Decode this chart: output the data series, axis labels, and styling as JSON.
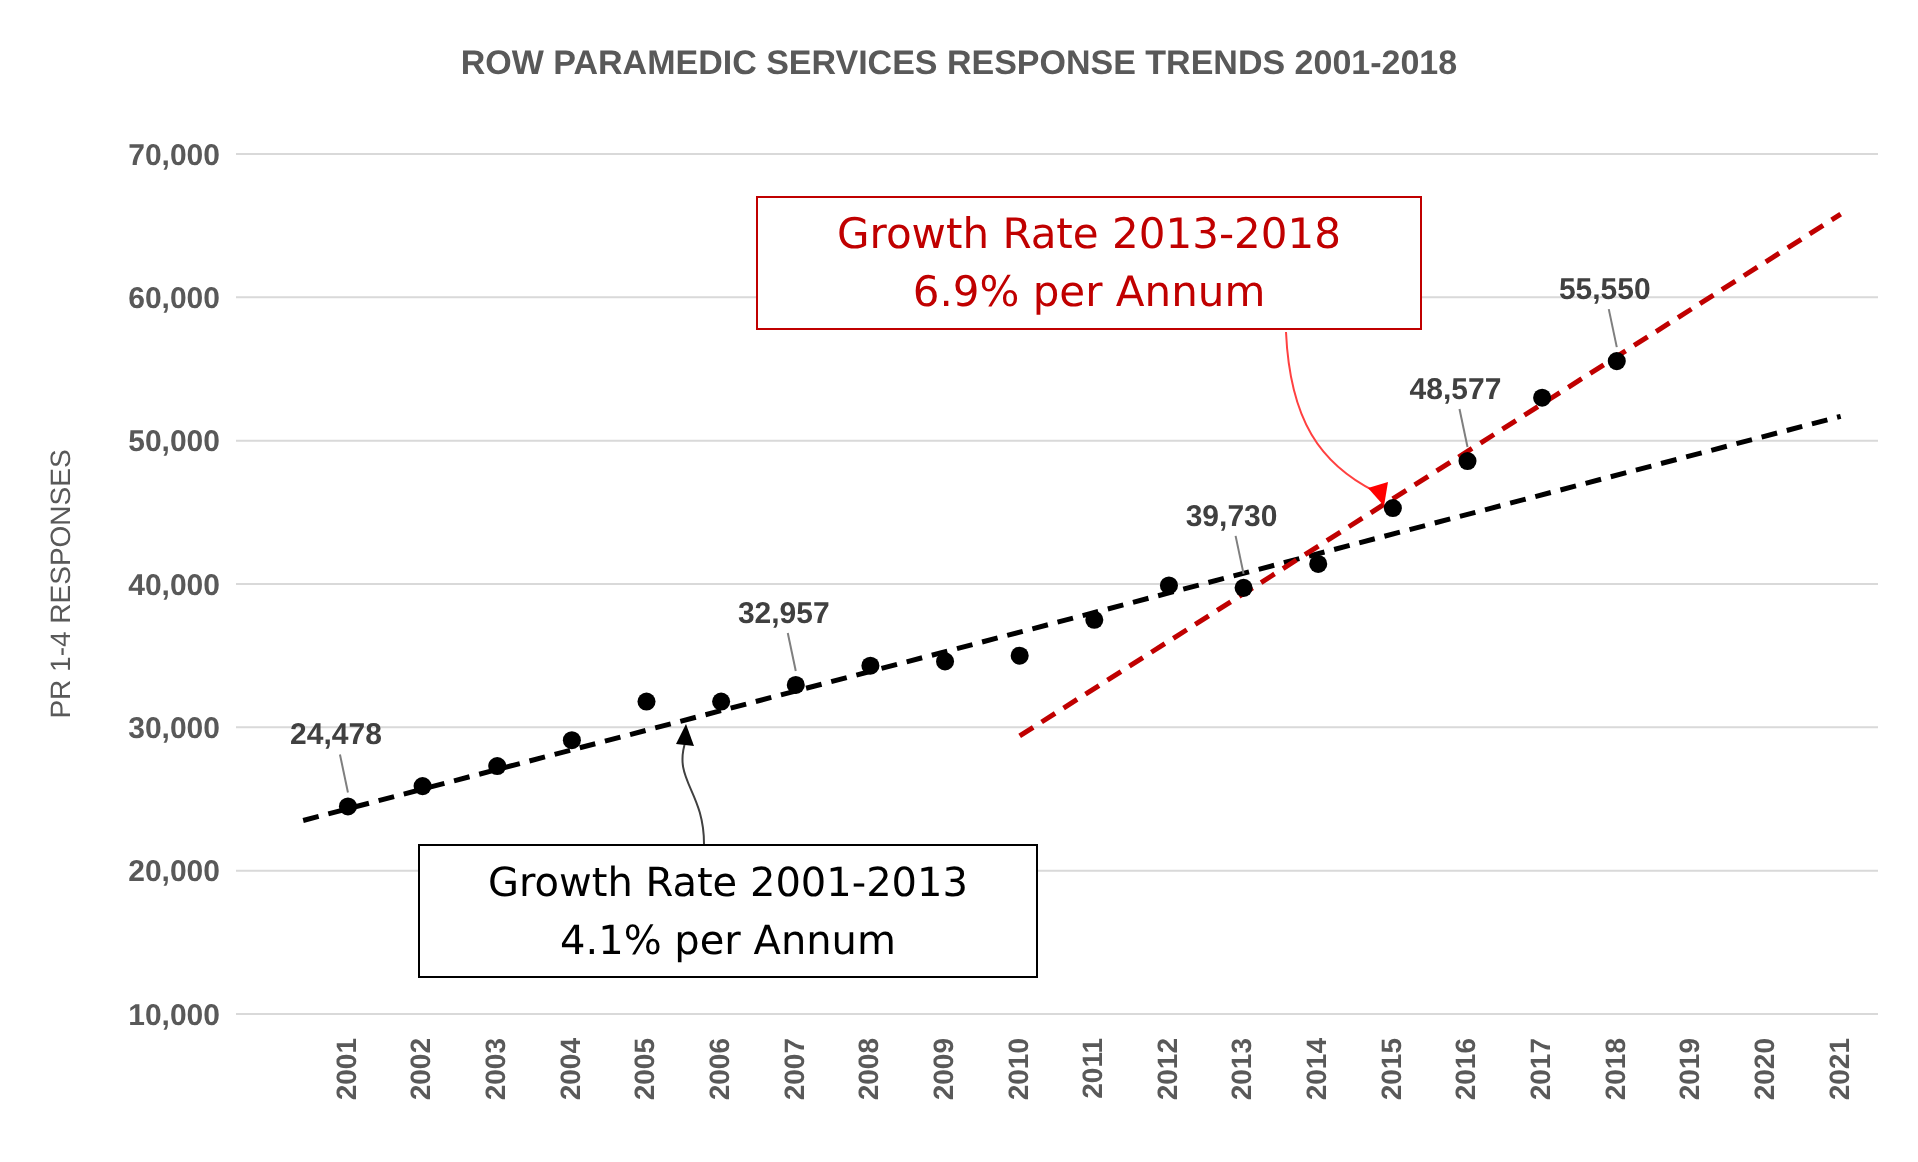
{
  "chart_data": {
    "type": "scatter",
    "title": "ROW PARAMEDIC SERVICES RESPONSE TRENDS 2001-2018",
    "ylabel": "PR 1-4 RESPONSES",
    "xlim": [
      1999.5,
      2021.5
    ],
    "xticks": [
      2001,
      2002,
      2003,
      2004,
      2005,
      2006,
      2007,
      2008,
      2009,
      2010,
      2011,
      2012,
      2013,
      2014,
      2015,
      2016,
      2017,
      2018,
      2019,
      2020,
      2021
    ],
    "ylim": [
      10000,
      70000
    ],
    "yticks": [
      {
        "value": 10000,
        "label": "10,000"
      },
      {
        "value": 20000,
        "label": "20,000"
      },
      {
        "value": 30000,
        "label": "30,000"
      },
      {
        "value": 40000,
        "label": "40,000"
      },
      {
        "value": 50000,
        "label": "50,000"
      },
      {
        "value": 60000,
        "label": "60,000"
      },
      {
        "value": 70000,
        "label": "70,000"
      }
    ],
    "grid": "y",
    "legend": false,
    "series": [
      {
        "color": "#000000",
        "marker": "circle",
        "x": [
          2001,
          2002,
          2003,
          2004,
          2005,
          2006,
          2007,
          2008,
          2009,
          2010,
          2011,
          2012,
          2013,
          2014,
          2015,
          2016,
          2017,
          2018
        ],
        "values": [
          24478,
          25900,
          27300,
          29100,
          31800,
          31800,
          32957,
          34300,
          34600,
          35000,
          37500,
          39900,
          39730,
          41400,
          45300,
          48577,
          53000,
          55550
        ],
        "value_labels": [
          "24,478",
          null,
          null,
          null,
          null,
          null,
          "32,957",
          null,
          null,
          null,
          null,
          null,
          "39,730",
          null,
          null,
          "48,577",
          null,
          "55,550"
        ]
      },
      {
        "type": "line",
        "color": "#000000",
        "line_style": "dashed",
        "marker": "none",
        "x": [
          2000.4,
          2021
        ],
        "values": [
          23500,
          51700
        ]
      },
      {
        "type": "line",
        "color": "#c00000",
        "line_style": "dashed",
        "marker": "none",
        "x": [
          2010,
          2021
        ],
        "values": [
          29400,
          65800
        ]
      }
    ],
    "annotations": [
      "Growth Rate 2013-2018\n6.9% per Annum",
      "Growth Rate 2001-2013\n4.1% per Annum"
    ]
  }
}
